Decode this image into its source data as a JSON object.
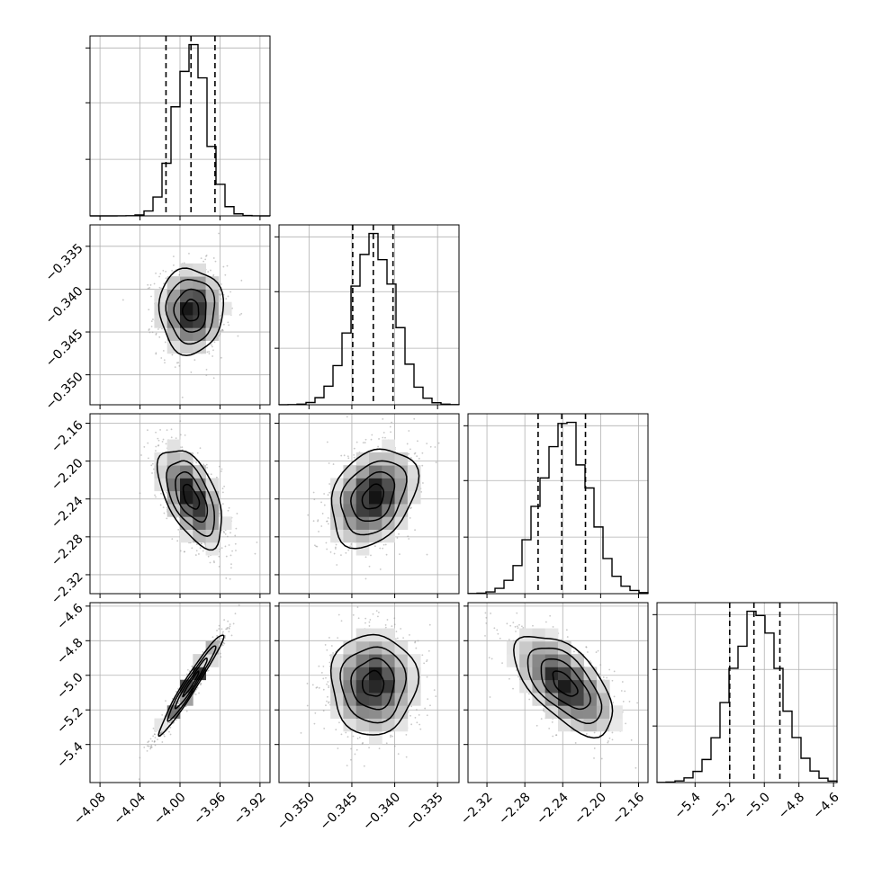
{
  "chart_data": {
    "type": "corner",
    "parameters": [
      {
        "id": "p0",
        "range": [
          -4.09,
          -3.91
        ],
        "ticks": [
          -4.08,
          -4.04,
          -4.0,
          -3.96,
          -3.92
        ],
        "tick_labels": [
          "−4.08",
          "−4.04",
          "−4.00",
          "−3.96",
          "−3.92"
        ],
        "quantiles": [
          -4.014,
          -3.989,
          -3.965
        ],
        "mean": -3.989,
        "sd": 0.016
      },
      {
        "id": "p1",
        "range": [
          -0.3535,
          -0.3325
        ],
        "ticks": [
          -0.35,
          -0.345,
          -0.34,
          -0.335
        ],
        "tick_labels": [
          "−0.350",
          "−0.345",
          "−0.340",
          "−0.335"
        ],
        "quantiles": [
          -0.3449,
          -0.3425,
          -0.3402
        ],
        "mean": -0.3425,
        "sd": 0.0025
      },
      {
        "id": "p2",
        "range": [
          -2.34,
          -2.15
        ],
        "ticks": [
          -2.32,
          -2.28,
          -2.24,
          -2.2,
          -2.16
        ],
        "tick_labels": [
          "−2.32",
          "−2.28",
          "−2.24",
          "−2.20",
          "−2.16"
        ],
        "quantiles": [
          -2.266,
          -2.241,
          -2.216
        ],
        "mean": -2.238,
        "sd": 0.026
      },
      {
        "id": "p3",
        "range": [
          -5.62,
          -4.58
        ],
        "ticks": [
          -5.4,
          -5.2,
          -5.0,
          -4.8,
          -4.6
        ],
        "tick_labels": [
          "−5.4",
          "−5.2",
          "−5.0",
          "−4.8",
          "−4.6"
        ],
        "quantiles": [
          -5.2,
          -5.06,
          -4.91
        ],
        "mean": -5.05,
        "sd": 0.145
      }
    ],
    "correlations": [
      [
        1.0,
        0.0,
        -0.55,
        0.97
      ],
      [
        0.0,
        1.0,
        0.3,
        0.0
      ],
      [
        -0.55,
        0.3,
        1.0,
        -0.6
      ],
      [
        0.97,
        0.0,
        -0.6,
        1.0
      ]
    ],
    "histogram_bins": 20,
    "grid": true,
    "contour_levels": [
      0.5,
      1.0,
      1.5,
      2.0
    ]
  }
}
